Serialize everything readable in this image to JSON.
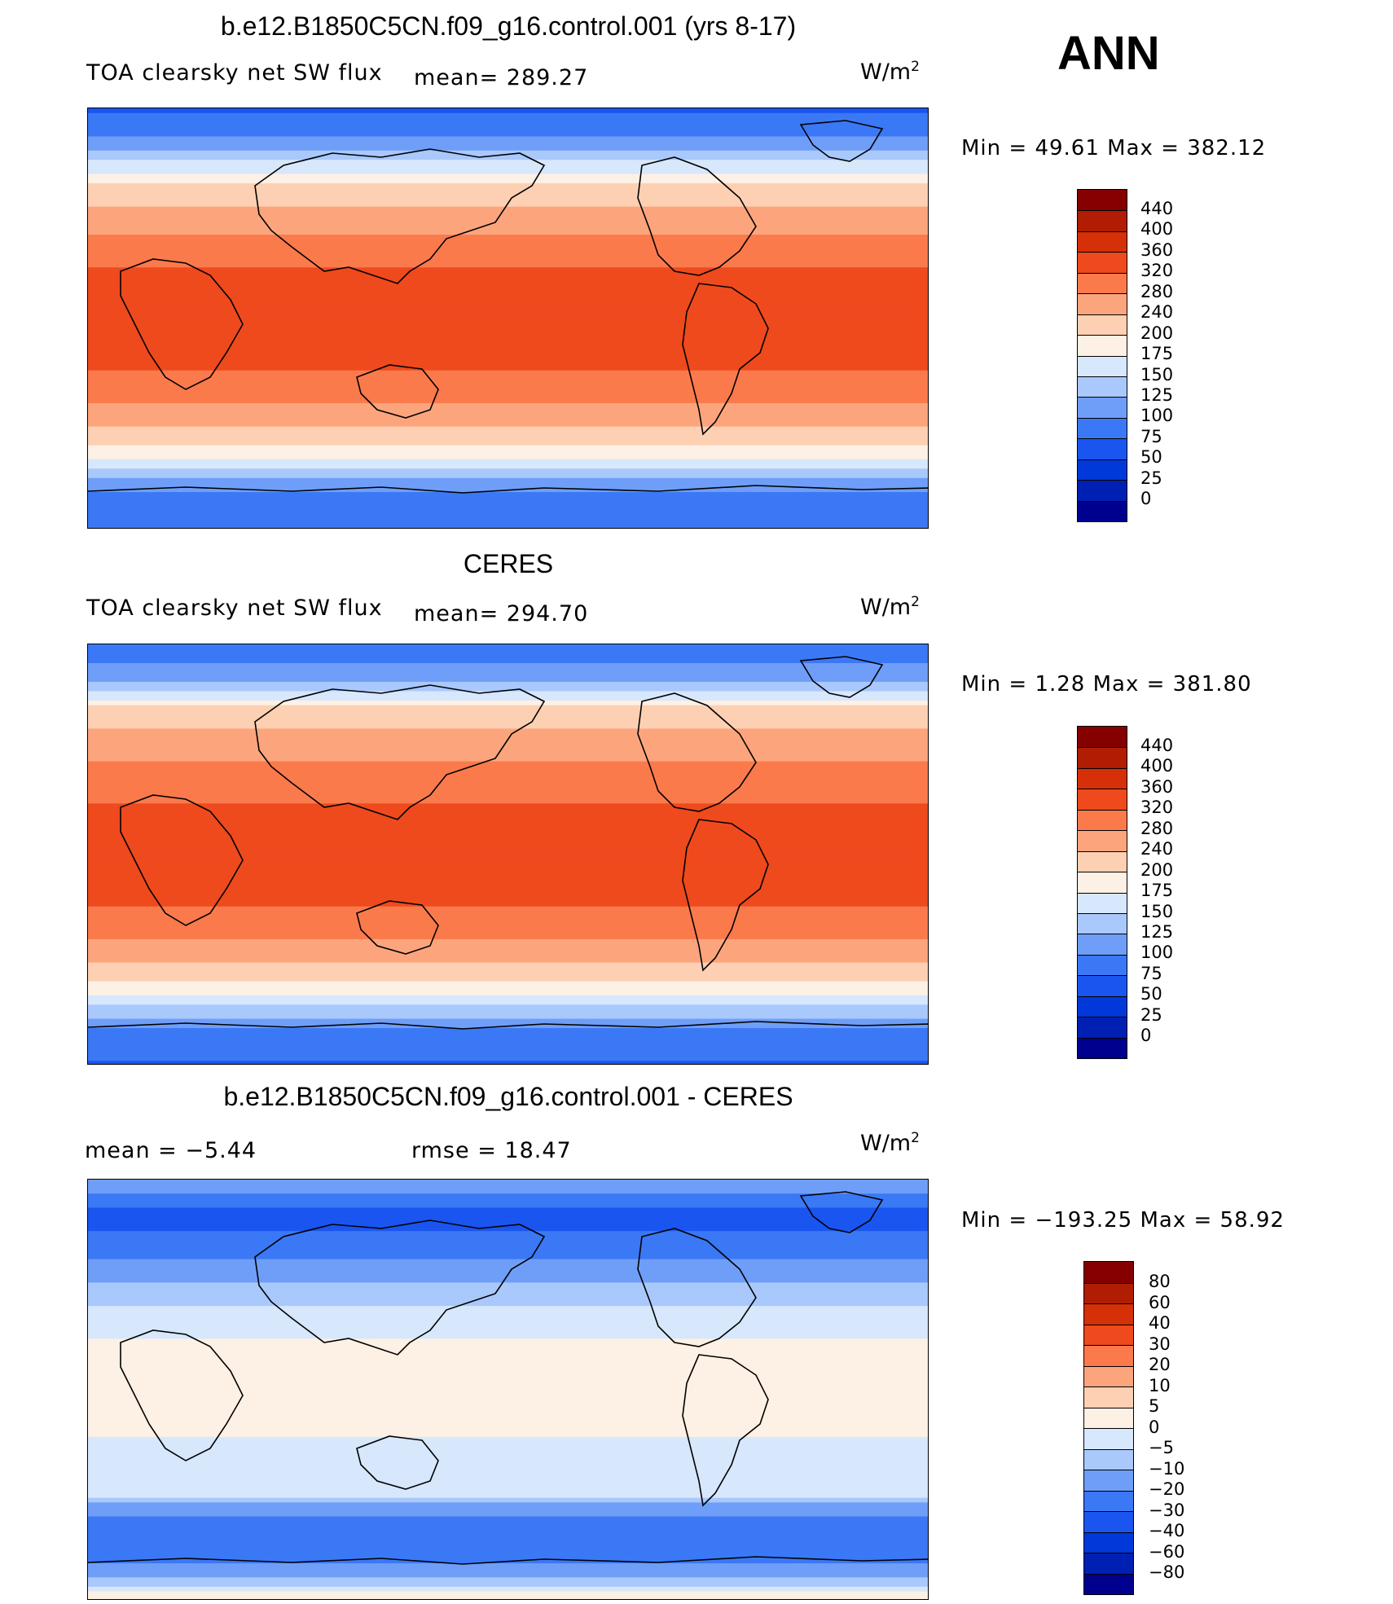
{
  "season": "ANN",
  "units": {
    "base": "W/m",
    "exp": "2"
  },
  "panels": [
    {
      "id": "model",
      "title": "b.e12.B1850C5CN.f09_g16.control.001 (yrs 8-17)",
      "variable": "TOA clearsky net SW flux",
      "mean_text": "mean=  289.27",
      "minmax_text": "Min =   49.61  Max  =  382.12",
      "colorbar_labels": [
        "440",
        "400",
        "360",
        "320",
        "280",
        "240",
        "200",
        "175",
        "150",
        "125",
        "100",
        "75",
        "50",
        "25",
        "0"
      ]
    },
    {
      "id": "obs",
      "title": "CERES",
      "variable": "TOA clearsky net SW flux",
      "mean_text": "mean=  294.70",
      "minmax_text": "Min =    1.28  Max  =  381.80",
      "colorbar_labels": [
        "440",
        "400",
        "360",
        "320",
        "280",
        "240",
        "200",
        "175",
        "150",
        "125",
        "100",
        "75",
        "50",
        "25",
        "0"
      ]
    },
    {
      "id": "diff",
      "title": "b.e12.B1850C5CN.f09_g16.control.001 - CERES",
      "mean_text": "mean =   −5.44",
      "rmse_text": "rmse =   18.47",
      "minmax_text": "Min = −193.25  Max =    58.92",
      "colorbar_labels": [
        "80",
        "60",
        "40",
        "30",
        "20",
        "10",
        "5",
        "0",
        "−5",
        "−10",
        "−20",
        "−30",
        "−40",
        "−60",
        "−80"
      ]
    }
  ],
  "colors": {
    "abs_palette": [
      "#00008f",
      "#0020b3",
      "#0038d9",
      "#1a55f0",
      "#3b78f5",
      "#6f9ef8",
      "#a9c8fb",
      "#d7e7fc",
      "#fdf0e4",
      "#fdd0b3",
      "#fca57d",
      "#fa7a4c",
      "#ee4a1d",
      "#d53008",
      "#b01d02",
      "#870000"
    ],
    "diff_palette": [
      "#00008f",
      "#0020b3",
      "#0038d9",
      "#1a55f0",
      "#3b78f5",
      "#6f9ef8",
      "#a9c8fb",
      "#d7e7fc",
      "#fdf0e4",
      "#fdd0b3",
      "#fca57d",
      "#fa7a4c",
      "#ee4a1d",
      "#d53008",
      "#b01d02",
      "#870000"
    ]
  },
  "chart_data": [
    {
      "type": "heatmap",
      "title": "b.e12.B1850C5CN.f09_g16.control.001 (yrs 8-17)",
      "subtitle": "TOA clearsky net SW flux",
      "units": "W/m^2",
      "mean": 289.27,
      "min": 49.61,
      "max": 382.12,
      "colorbar_levels": [
        0,
        25,
        50,
        75,
        100,
        125,
        150,
        175,
        200,
        240,
        280,
        320,
        360,
        400,
        440
      ],
      "zonal_profile": {
        "lat": [
          90,
          75,
          60,
          45,
          30,
          15,
          0,
          -15,
          -30,
          -45,
          -60,
          -75,
          -90
        ],
        "value": [
          70,
          110,
          190,
          250,
          300,
          335,
          345,
          335,
          300,
          245,
          170,
          90,
          75
        ]
      }
    },
    {
      "type": "heatmap",
      "title": "CERES",
      "subtitle": "TOA clearsky net SW flux",
      "units": "W/m^2",
      "mean": 294.7,
      "min": 1.28,
      "max": 381.8,
      "colorbar_levels": [
        0,
        25,
        50,
        75,
        100,
        125,
        150,
        175,
        200,
        240,
        280,
        320,
        360,
        400,
        440
      ],
      "zonal_profile": {
        "lat": [
          90,
          75,
          60,
          45,
          30,
          15,
          0,
          -15,
          -30,
          -45,
          -60,
          -75,
          -90
        ],
        "value": [
          75,
          120,
          220,
          265,
          305,
          335,
          345,
          335,
          300,
          245,
          175,
          95,
          70
        ]
      }
    },
    {
      "type": "heatmap",
      "title": "b.e12.B1850C5CN.f09_g16.control.001 - CERES",
      "units": "W/m^2",
      "mean": -5.44,
      "rmse": 18.47,
      "min": -193.25,
      "max": 58.92,
      "colorbar_levels": [
        -80,
        -60,
        -40,
        -30,
        -20,
        -10,
        -5,
        0,
        5,
        10,
        20,
        30,
        40,
        60,
        80
      ],
      "zonal_profile": {
        "lat": [
          90,
          75,
          60,
          45,
          30,
          15,
          0,
          -15,
          -30,
          -45,
          -60,
          -75,
          -90
        ],
        "value": [
          -10,
          -35,
          -25,
          -8,
          -3,
          2,
          2,
          1,
          -2,
          -4,
          -30,
          -20,
          5
        ]
      }
    }
  ]
}
